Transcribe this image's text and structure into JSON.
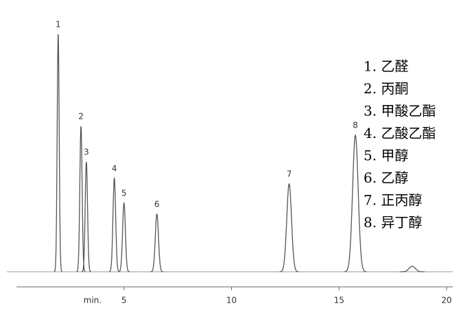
{
  "chart_data": {
    "type": "chromatogram",
    "x_label": "min.",
    "categories": [
      "1",
      "2",
      "3",
      "4",
      "5",
      "6",
      "7",
      "8",
      null
    ],
    "x": [
      1.94,
      3.0,
      3.25,
      4.55,
      5.0,
      6.53,
      12.68,
      15.76,
      18.4
    ],
    "values": [
      346,
      212,
      160,
      136,
      100,
      84,
      128,
      199,
      8
    ],
    "color": "#555555",
    "xlim": [
      0,
      20
    ],
    "xticks": [
      5,
      10,
      15,
      20
    ],
    "ylim": [
      0,
      360
    ],
    "legend": [
      "1. 乙醛",
      "2. 丙酮",
      "3. 甲酸乙酯",
      "4. 乙酸乙酯",
      "5. 甲醇",
      "6. 乙醇",
      "7. 正丙醇",
      "8. 异丁醇"
    ]
  }
}
